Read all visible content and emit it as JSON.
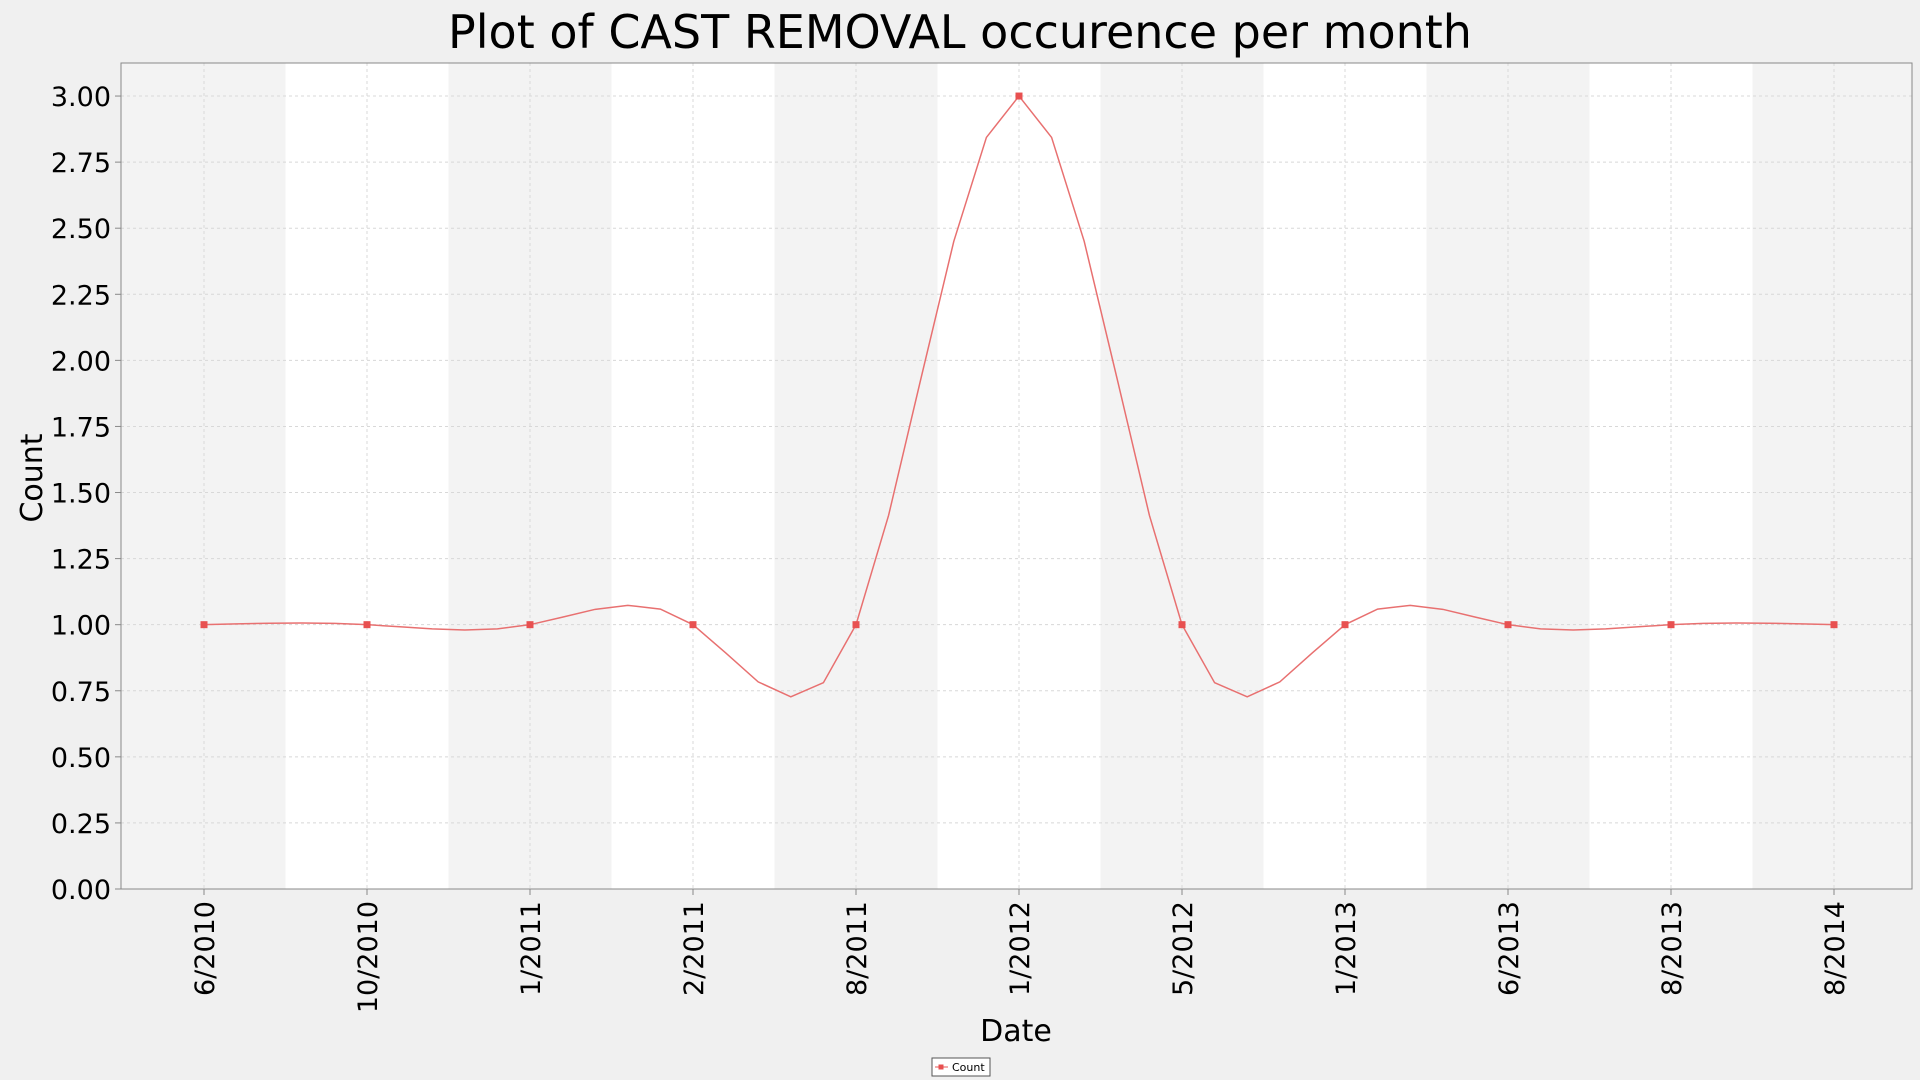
{
  "chart_data": {
    "type": "line",
    "title": "Plot of CAST REMOVAL occurence per month",
    "xlabel": "Date",
    "ylabel": "Count",
    "categories": [
      "6/2010",
      "10/2010",
      "1/2011",
      "2/2011",
      "8/2011",
      "1/2012",
      "5/2012",
      "1/2013",
      "6/2013",
      "8/2013",
      "8/2014"
    ],
    "series": [
      {
        "name": "Count",
        "values": [
          1,
          1,
          1,
          1,
          1,
          3,
          1,
          1,
          1,
          1,
          1
        ]
      }
    ],
    "ylim": [
      0,
      3.125
    ],
    "yticks": [
      "0.00",
      "0.25",
      "0.50",
      "0.75",
      "1.00",
      "1.25",
      "1.50",
      "1.75",
      "2.00",
      "2.25",
      "2.50",
      "2.75",
      "3.00"
    ],
    "grid": true,
    "legend_position": "bottom-center",
    "colors": {
      "series": "#e87070",
      "marker": "#e85050",
      "band_light": "#ffffff",
      "band_dark": "#f3f3f3",
      "gridline": "#d8d8d8",
      "page_background": "#f0f0f0"
    }
  }
}
